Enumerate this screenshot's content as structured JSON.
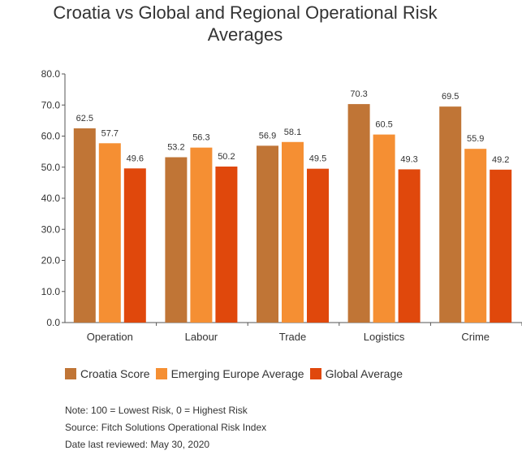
{
  "chart_data": {
    "type": "bar",
    "title_lines": [
      "Croatia vs Global and Regional Operational Risk",
      "Averages"
    ],
    "categories": [
      "Operation",
      "Labour",
      "Trade",
      "Logistics",
      "Crime"
    ],
    "series": [
      {
        "name": "Croatia Score",
        "color": "#c07536",
        "values": [
          62.5,
          53.2,
          56.9,
          70.3,
          69.5
        ]
      },
      {
        "name": "Emerging Europe Average",
        "color": "#f58f33",
        "values": [
          57.7,
          56.3,
          58.1,
          60.5,
          55.9
        ]
      },
      {
        "name": "Global Average",
        "color": "#e0480c",
        "values": [
          49.6,
          50.2,
          49.5,
          49.3,
          49.2
        ]
      }
    ],
    "ylim": [
      0,
      80
    ],
    "yticks": [
      "0.0",
      "10.0",
      "20.0",
      "30.0",
      "40.0",
      "50.0",
      "60.0",
      "70.0",
      "80.0"
    ],
    "xlabel": "",
    "ylabel": "",
    "grid": false,
    "legend_position": "bottom-left"
  },
  "notes": [
    "Note: 100 = Lowest Risk, 0 = Highest Risk",
    "Source: Fitch Solutions Operational Risk Index",
    "Date last reviewed: May 30, 2020"
  ]
}
